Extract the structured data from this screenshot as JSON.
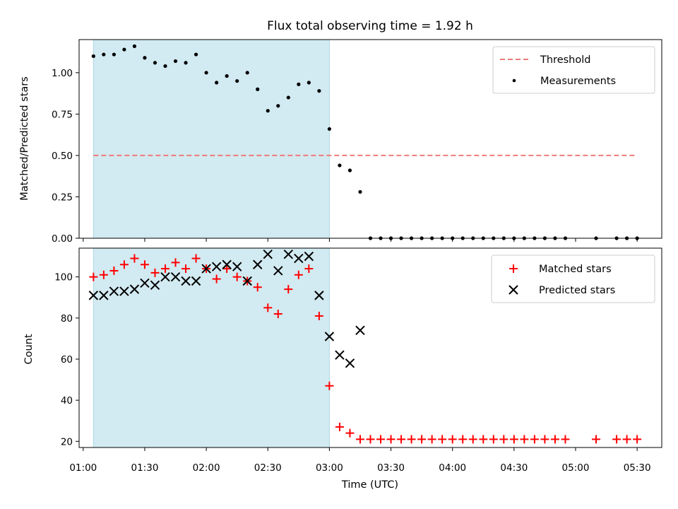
{
  "chart_data": [
    {
      "type": "scatter",
      "title": "Flux total observing time = 1.92 h",
      "xlabel": "",
      "ylabel": "Matched/Predicted stars",
      "ylim": [
        0,
        1.2
      ],
      "yticks": [
        "0.00",
        "0.25",
        "0.50",
        "0.75",
        "1.00"
      ],
      "ytick_values": [
        0,
        0.25,
        0.5,
        0.75,
        1.0
      ],
      "shaded_interval": [
        "01:05",
        "03:00"
      ],
      "shade_color": "#add8e6",
      "threshold": {
        "name": "Threshold",
        "value": 0.5,
        "x_start": "01:05",
        "x_end": "05:30",
        "color": "#f07b7b"
      },
      "series": [
        {
          "name": "Measurements",
          "marker": "dot",
          "color": "#000000",
          "points": [
            [
              "01:05",
              1.1
            ],
            [
              "01:10",
              1.11
            ],
            [
              "01:15",
              1.11
            ],
            [
              "01:20",
              1.14
            ],
            [
              "01:25",
              1.16
            ],
            [
              "01:30",
              1.09
            ],
            [
              "01:35",
              1.06
            ],
            [
              "01:40",
              1.04
            ],
            [
              "01:45",
              1.07
            ],
            [
              "01:50",
              1.06
            ],
            [
              "01:55",
              1.11
            ],
            [
              "02:00",
              1.0
            ],
            [
              "02:05",
              0.94
            ],
            [
              "02:10",
              0.98
            ],
            [
              "02:15",
              0.95
            ],
            [
              "02:20",
              1.0
            ],
            [
              "02:25",
              0.9
            ],
            [
              "02:30",
              0.77
            ],
            [
              "02:35",
              0.8
            ],
            [
              "02:40",
              0.85
            ],
            [
              "02:45",
              0.93
            ],
            [
              "02:50",
              0.94
            ],
            [
              "02:55",
              0.89
            ],
            [
              "03:00",
              0.66
            ],
            [
              "03:05",
              0.44
            ],
            [
              "03:10",
              0.41
            ],
            [
              "03:15",
              0.28
            ],
            [
              "03:20",
              0
            ],
            [
              "03:25",
              0
            ],
            [
              "03:30",
              0
            ],
            [
              "03:35",
              0
            ],
            [
              "03:40",
              0
            ],
            [
              "03:45",
              0
            ],
            [
              "03:50",
              0
            ],
            [
              "03:55",
              0
            ],
            [
              "04:00",
              0
            ],
            [
              "04:05",
              0
            ],
            [
              "04:10",
              0
            ],
            [
              "04:15",
              0
            ],
            [
              "04:20",
              0
            ],
            [
              "04:25",
              0
            ],
            [
              "04:30",
              0
            ],
            [
              "04:35",
              0
            ],
            [
              "04:40",
              0
            ],
            [
              "04:45",
              0
            ],
            [
              "04:50",
              0
            ],
            [
              "04:55",
              0
            ],
            [
              "05:10",
              0
            ],
            [
              "05:20",
              0
            ],
            [
              "05:25",
              0
            ],
            [
              "05:30",
              0
            ]
          ]
        }
      ],
      "legend": {
        "position": "top-right",
        "entries": [
          "Threshold",
          "Measurements"
        ]
      }
    },
    {
      "type": "scatter",
      "title": "",
      "xlabel": "Time (UTC)",
      "ylabel": "Count",
      "ylim": [
        17,
        114
      ],
      "yticks": [
        "20",
        "40",
        "60",
        "80",
        "100"
      ],
      "ytick_values": [
        20,
        40,
        60,
        80,
        100
      ],
      "xlim": [
        "00:58",
        "05:42"
      ],
      "xticks": [
        "01:00",
        "01:30",
        "02:00",
        "02:30",
        "03:00",
        "03:30",
        "04:00",
        "04:30",
        "05:00",
        "05:30"
      ],
      "shaded_interval": [
        "01:05",
        "03:00"
      ],
      "shade_color": "#add8e6",
      "series": [
        {
          "name": "Matched stars",
          "marker": "plus",
          "color": "#ff0000",
          "points": [
            [
              "01:05",
              100
            ],
            [
              "01:10",
              101
            ],
            [
              "01:15",
              103
            ],
            [
              "01:20",
              106
            ],
            [
              "01:25",
              109
            ],
            [
              "01:30",
              106
            ],
            [
              "01:35",
              102
            ],
            [
              "01:40",
              104
            ],
            [
              "01:45",
              107
            ],
            [
              "01:50",
              104
            ],
            [
              "01:55",
              109
            ],
            [
              "02:00",
              104
            ],
            [
              "02:05",
              99
            ],
            [
              "02:10",
              104
            ],
            [
              "02:15",
              100
            ],
            [
              "02:20",
              98
            ],
            [
              "02:25",
              95
            ],
            [
              "02:30",
              85
            ],
            [
              "02:35",
              82
            ],
            [
              "02:40",
              94
            ],
            [
              "02:45",
              101
            ],
            [
              "02:50",
              104
            ],
            [
              "02:55",
              81
            ],
            [
              "03:00",
              47
            ],
            [
              "03:05",
              27
            ],
            [
              "03:10",
              24
            ],
            [
              "03:15",
              21
            ],
            [
              "03:20",
              21
            ],
            [
              "03:25",
              21
            ],
            [
              "03:30",
              21
            ],
            [
              "03:35",
              21
            ],
            [
              "03:40",
              21
            ],
            [
              "03:45",
              21
            ],
            [
              "03:50",
              21
            ],
            [
              "03:55",
              21
            ],
            [
              "04:00",
              21
            ],
            [
              "04:05",
              21
            ],
            [
              "04:10",
              21
            ],
            [
              "04:15",
              21
            ],
            [
              "04:20",
              21
            ],
            [
              "04:25",
              21
            ],
            [
              "04:30",
              21
            ],
            [
              "04:35",
              21
            ],
            [
              "04:40",
              21
            ],
            [
              "04:45",
              21
            ],
            [
              "04:50",
              21
            ],
            [
              "04:55",
              21
            ],
            [
              "05:10",
              21
            ],
            [
              "05:20",
              21
            ],
            [
              "05:25",
              21
            ],
            [
              "05:30",
              21
            ]
          ]
        },
        {
          "name": "Predicted stars",
          "marker": "x",
          "color": "#000000",
          "points": [
            [
              "01:05",
              91
            ],
            [
              "01:10",
              91
            ],
            [
              "01:15",
              93
            ],
            [
              "01:20",
              93
            ],
            [
              "01:25",
              94
            ],
            [
              "01:30",
              97
            ],
            [
              "01:35",
              96
            ],
            [
              "01:40",
              100
            ],
            [
              "01:45",
              100
            ],
            [
              "01:50",
              98
            ],
            [
              "01:55",
              98
            ],
            [
              "02:00",
              104
            ],
            [
              "02:05",
              105
            ],
            [
              "02:10",
              106
            ],
            [
              "02:15",
              105
            ],
            [
              "02:20",
              98
            ],
            [
              "02:25",
              106
            ],
            [
              "02:30",
              111
            ],
            [
              "02:35",
              103
            ],
            [
              "02:40",
              111
            ],
            [
              "02:45",
              109
            ],
            [
              "02:50",
              110
            ],
            [
              "02:55",
              91
            ],
            [
              "03:00",
              71
            ],
            [
              "03:05",
              62
            ],
            [
              "03:10",
              58
            ],
            [
              "03:15",
              74
            ]
          ]
        }
      ],
      "legend": {
        "position": "top-right",
        "entries": [
          "Matched stars",
          "Predicted stars"
        ]
      }
    }
  ]
}
